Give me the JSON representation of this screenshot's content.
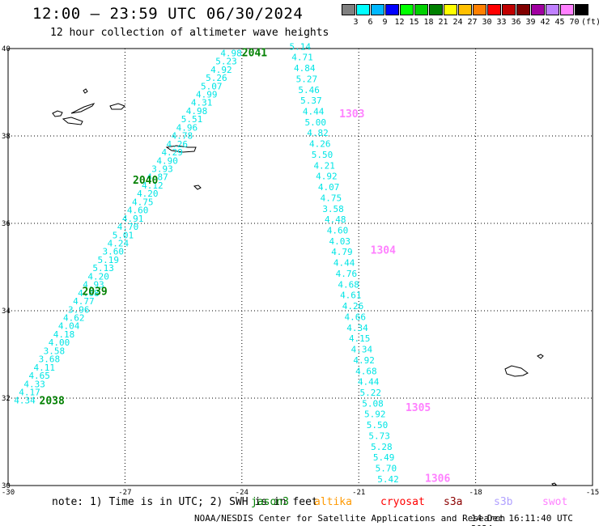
{
  "header": {
    "title": "12:00 – 23:59 UTC 06/30/2024",
    "subtitle": "12 hour collection of altimeter wave heights"
  },
  "colorbar": {
    "colors": [
      "#808080",
      "#00ffff",
      "#00b8ff",
      "#0000ff",
      "#00ff00",
      "#00d000",
      "#008000",
      "#ffff00",
      "#ffc000",
      "#ff8000",
      "#ff0000",
      "#c00000",
      "#800000",
      "#a000a0",
      "#c080ff",
      "#ff80ff",
      "#000000"
    ],
    "labels": [
      "3",
      "6",
      "9",
      "12",
      "15",
      "18",
      "21",
      "24",
      "27",
      "30",
      "33",
      "36",
      "39",
      "42",
      "45",
      "70"
    ],
    "unit": "(ft)"
  },
  "map": {
    "lon_ticks": [
      "-30",
      "-27",
      "-24",
      "-21",
      "-18",
      "-15"
    ],
    "lat_ticks": [
      "40",
      "38",
      "36",
      "34",
      "32",
      "30"
    ],
    "lon_range": [
      -30,
      -15
    ],
    "lat_range": [
      30,
      40
    ],
    "grid": "dotted"
  },
  "tracks": [
    {
      "values": [
        "4.98",
        "5.23",
        "4.92",
        "5.26",
        "5.07",
        "4.99",
        "4.31",
        "4.98",
        "5.51",
        "4.96",
        "4.78",
        "4.26",
        "4.29",
        "4.90",
        "3.93",
        "4.87",
        "4.12",
        "4.20",
        "4.75",
        "4.60",
        "4.91",
        "4.70",
        "5.01",
        "4.24",
        "3.60",
        "5.19",
        "5.13",
        "4.20",
        "4.93",
        "4.68",
        "4.77",
        "3.96",
        "4.62",
        "4.04",
        "4.18",
        "4.00",
        "3.58",
        "3.68",
        "4.11",
        "4.65",
        "4.33",
        "4.17",
        "4.34"
      ],
      "passes": [
        {
          "label": "2041",
          "lon": -24.0,
          "lat": 39.92
        },
        {
          "label": "2040",
          "lon": -26.8,
          "lat": 37.0
        },
        {
          "label": "2039",
          "lon": -28.1,
          "lat": 34.45
        },
        {
          "label": "2038",
          "lon": -29.2,
          "lat": 31.95
        }
      ]
    },
    {
      "values": [
        "5.14",
        "4.71",
        "4.84",
        "5.27",
        "5.46",
        "5.37",
        "4.44",
        "5.00",
        "4.82",
        "4.26",
        "5.50",
        "4.21",
        "4.92",
        "4.07",
        "4.75",
        "3.58",
        "4.48",
        "4.60",
        "4.03",
        "4.79",
        "4.44",
        "4.76",
        "4.68",
        "4.61",
        "4.26",
        "4.66",
        "4.34",
        "4.15",
        "4.34",
        "4.92",
        "4.68",
        "4.44",
        "5.22",
        "5.08",
        "5.92",
        "5.50",
        "5.73",
        "5.28",
        "5.49",
        "5.70",
        "5.42"
      ],
      "passes": [
        {
          "label": "1303",
          "lon": -21.5,
          "lat": 38.52
        },
        {
          "label": "1304",
          "lon": -20.7,
          "lat": 35.4
        },
        {
          "label": "1305",
          "lon": -19.8,
          "lat": 31.8
        },
        {
          "label": "1306",
          "lon": -19.3,
          "lat": 30.18
        }
      ]
    }
  ],
  "note": "note: 1) Time is in UTC; 2) SWH is in feet",
  "legend": [
    {
      "label": "jason3",
      "color": "#008000"
    },
    {
      "label": "altika",
      "color": "#ff9900"
    },
    {
      "label": "cryosat",
      "color": "#ff0000"
    },
    {
      "label": "s3a",
      "color": "#8b0000"
    },
    {
      "label": "s3b",
      "color": "#b0a0ff"
    },
    {
      "label": "swot",
      "color": "#ff80ff"
    }
  ],
  "footer": {
    "credit": "NOAA/NESDIS Center for Satellite Applications and Research",
    "timestamp": "14 Dec 16:11:40 UTC 2024"
  }
}
